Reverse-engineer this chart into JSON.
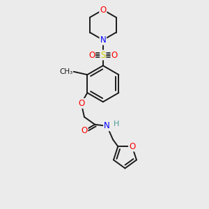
{
  "background_color": "#ebebeb",
  "atom_colors": {
    "O": "#ff0000",
    "N": "#0000ff",
    "S": "#cccc00",
    "C": "#1a1a1a",
    "H": "#4a9999"
  },
  "bond_color": "#1a1a1a",
  "bond_width": 1.4,
  "font_size_atom": 8.5
}
